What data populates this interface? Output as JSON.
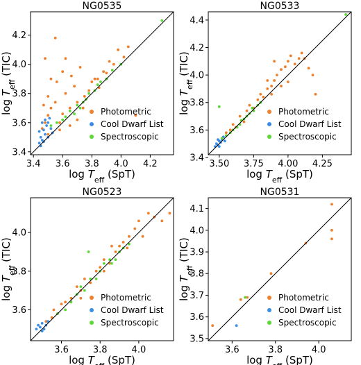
{
  "colors": {
    "photometric": "#f07f2a",
    "cool_dwarf": "#3b8ee6",
    "spectroscopic": "#5ad935",
    "line": "#000000"
  },
  "chart_data": [
    {
      "type": "scatter",
      "title": "NG0535",
      "xlabel": "log T_eff (SpT)",
      "ylabel": "log T_eff (TIC)",
      "xlim": [
        3.38,
        4.36
      ],
      "ylim": [
        3.38,
        4.36
      ],
      "xticks": [
        "3.4",
        "3.6",
        "3.8",
        "4.0",
        "4.2"
      ],
      "yticks": [
        "3.4",
        "3.6",
        "3.8",
        "4.0",
        "4.2"
      ],
      "legend_position": "lower-right",
      "identity_line": true,
      "series": [
        {
          "name": "Photometric",
          "color_key": "photometric",
          "points": [
            [
              3.46,
              3.56
            ],
            [
              3.48,
              3.6
            ],
            [
              3.5,
              3.65
            ],
            [
              3.52,
              3.7
            ],
            [
              3.5,
              3.78
            ],
            [
              3.52,
              3.9
            ],
            [
              3.48,
              4.04
            ],
            [
              3.55,
              3.74
            ],
            [
              3.58,
              3.6
            ],
            [
              3.6,
              3.66
            ],
            [
              3.62,
              3.8
            ],
            [
              3.65,
              3.7
            ],
            [
              3.68,
              3.85
            ],
            [
              3.7,
              3.74
            ],
            [
              3.72,
              3.98
            ],
            [
              3.75,
              3.78
            ],
            [
              3.78,
              3.82
            ],
            [
              3.8,
              3.88
            ],
            [
              3.82,
              3.9
            ],
            [
              3.85,
              3.84
            ],
            [
              3.88,
              3.95
            ],
            [
              3.9,
              3.94
            ],
            [
              3.92,
              4.02
            ],
            [
              3.95,
              4.0
            ],
            [
              3.98,
              4.1
            ],
            [
              4.02,
              4.05
            ],
            [
              4.05,
              4.12
            ],
            [
              4.1,
              3.65
            ],
            [
              3.55,
              4.18
            ],
            [
              3.6,
              3.95
            ],
            [
              3.65,
              3.58
            ],
            [
              3.5,
              3.52
            ],
            [
              3.7,
              3.62
            ],
            [
              3.56,
              3.88
            ],
            [
              3.62,
              4.04
            ],
            [
              3.47,
              3.72
            ],
            [
              3.58,
              3.55
            ],
            [
              3.66,
              3.92
            ],
            [
              3.74,
              3.7
            ],
            [
              3.84,
              3.9
            ]
          ]
        },
        {
          "name": "Cool Dwarf List",
          "color_key": "cool_dwarf",
          "points": [
            [
              3.44,
              3.46
            ],
            [
              3.45,
              3.5
            ],
            [
              3.46,
              3.48
            ],
            [
              3.47,
              3.55
            ],
            [
              3.48,
              3.52
            ],
            [
              3.49,
              3.58
            ],
            [
              3.5,
              3.5
            ],
            [
              3.46,
              3.6
            ],
            [
              3.52,
              3.56
            ],
            [
              3.44,
              3.54
            ],
            [
              3.48,
              3.62
            ],
            [
              3.5,
              3.6
            ],
            [
              3.45,
              3.44
            ],
            [
              3.53,
              3.53
            ],
            [
              3.47,
              3.47
            ],
            [
              3.51,
              3.63
            ]
          ]
        },
        {
          "name": "Spectroscopic",
          "color_key": "spectroscopic",
          "points": [
            [
              3.52,
              3.58
            ],
            [
              3.56,
              3.6
            ],
            [
              3.6,
              3.62
            ],
            [
              3.65,
              3.68
            ],
            [
              3.7,
              3.72
            ],
            [
              3.74,
              3.74
            ],
            [
              3.78,
              3.8
            ],
            [
              3.82,
              3.82
            ],
            [
              3.86,
              3.88
            ],
            [
              3.9,
              3.9
            ],
            [
              3.94,
              3.96
            ],
            [
              4.0,
              4.0
            ],
            [
              4.28,
              4.3
            ],
            [
              3.76,
              3.76
            ],
            [
              3.68,
              3.66
            ],
            [
              3.62,
              3.64
            ],
            [
              3.84,
              3.86
            ],
            [
              3.72,
              3.7
            ]
          ]
        }
      ]
    },
    {
      "type": "scatter",
      "title": "NG0533",
      "xlabel": "log T_eff (SpT)",
      "ylabel": "log T_eff (TIC)",
      "xlim": [
        3.42,
        4.46
      ],
      "ylim": [
        3.42,
        4.46
      ],
      "xticks": [
        "3.50",
        "3.75",
        "4.00",
        "4.25"
      ],
      "yticks": [
        "3.4",
        "3.6",
        "3.8",
        "4.0",
        "4.2",
        "4.4"
      ],
      "legend_position": "lower-right",
      "identity_line": true,
      "series": [
        {
          "name": "Photometric",
          "color_key": "photometric",
          "points": [
            [
              3.55,
              3.58
            ],
            [
              3.58,
              3.6
            ],
            [
              3.6,
              3.64
            ],
            [
              3.62,
              3.62
            ],
            [
              3.65,
              3.7
            ],
            [
              3.68,
              3.66
            ],
            [
              3.7,
              3.74
            ],
            [
              3.72,
              3.78
            ],
            [
              3.75,
              3.76
            ],
            [
              3.78,
              3.82
            ],
            [
              3.8,
              3.86
            ],
            [
              3.82,
              3.84
            ],
            [
              3.85,
              3.9
            ],
            [
              3.88,
              3.92
            ],
            [
              3.9,
              3.96
            ],
            [
              3.92,
              4.0
            ],
            [
              3.95,
              4.04
            ],
            [
              3.98,
              4.06
            ],
            [
              4.0,
              4.1
            ],
            [
              4.02,
              4.14
            ],
            [
              4.05,
              4.08
            ],
            [
              4.08,
              4.12
            ],
            [
              4.1,
              4.16
            ],
            [
              4.15,
              4.05
            ],
            [
              4.2,
              3.86
            ],
            [
              4.18,
              4.0
            ],
            [
              3.9,
              4.1
            ],
            [
              3.85,
              3.96
            ],
            [
              3.95,
              3.92
            ],
            [
              4.12,
              4.12
            ],
            [
              3.88,
              3.86
            ],
            [
              4.0,
              3.95
            ]
          ]
        },
        {
          "name": "Cool Dwarf List",
          "color_key": "cool_dwarf",
          "points": [
            [
              3.47,
              3.48
            ],
            [
              3.48,
              3.5
            ],
            [
              3.49,
              3.49
            ],
            [
              3.5,
              3.52
            ],
            [
              3.51,
              3.51
            ],
            [
              3.52,
              3.53
            ],
            [
              3.5,
              3.48
            ],
            [
              3.53,
              3.55
            ],
            [
              3.49,
              3.53
            ],
            [
              3.54,
              3.52
            ]
          ]
        },
        {
          "name": "Spectroscopic",
          "color_key": "spectroscopic",
          "points": [
            [
              3.52,
              3.54
            ],
            [
              3.55,
              3.56
            ],
            [
              3.58,
              3.58
            ],
            [
              3.6,
              3.6
            ],
            [
              3.63,
              3.62
            ],
            [
              3.65,
              3.64
            ],
            [
              3.68,
              3.68
            ],
            [
              3.7,
              3.7
            ],
            [
              3.72,
              3.72
            ],
            [
              3.75,
              3.74
            ],
            [
              3.78,
              3.78
            ],
            [
              3.8,
              3.8
            ],
            [
              3.5,
              3.77
            ],
            [
              4.42,
              4.44
            ],
            [
              3.66,
              3.67
            ],
            [
              3.74,
              3.76
            ]
          ]
        }
      ]
    },
    {
      "type": "scatter",
      "title": "NG0523",
      "xlabel": "log T_eff (SpT)",
      "ylabel": "log T_eff (TIC)",
      "xlim": [
        3.44,
        4.18
      ],
      "ylim": [
        3.44,
        4.18
      ],
      "xticks": [
        "3.6",
        "3.8",
        "4.0"
      ],
      "yticks": [
        "3.6",
        "3.8",
        "4.0"
      ],
      "legend_position": "lower-right",
      "identity_line": true,
      "series": [
        {
          "name": "Photometric",
          "color_key": "photometric",
          "points": [
            [
              3.52,
              3.54
            ],
            [
              3.55,
              3.56
            ],
            [
              3.56,
              3.6
            ],
            [
              3.58,
              3.58
            ],
            [
              3.6,
              3.63
            ],
            [
              3.62,
              3.64
            ],
            [
              3.65,
              3.66
            ],
            [
              3.68,
              3.72
            ],
            [
              3.7,
              3.7
            ],
            [
              3.72,
              3.76
            ],
            [
              3.75,
              3.74
            ],
            [
              3.78,
              3.8
            ],
            [
              3.8,
              3.82
            ],
            [
              3.82,
              3.86
            ],
            [
              3.85,
              3.84
            ],
            [
              3.88,
              3.9
            ],
            [
              3.9,
              3.93
            ],
            [
              3.92,
              3.95
            ],
            [
              3.95,
              3.98
            ],
            [
              3.98,
              4.02
            ],
            [
              4.0,
              4.06
            ],
            [
              4.02,
              3.98
            ],
            [
              4.05,
              4.1
            ],
            [
              4.08,
              4.08
            ],
            [
              4.12,
              4.06
            ],
            [
              4.16,
              4.1
            ],
            [
              3.86,
              3.93
            ],
            [
              3.94,
              3.92
            ],
            [
              3.7,
              3.66
            ],
            [
              3.82,
              3.8
            ]
          ]
        },
        {
          "name": "Cool Dwarf List",
          "color_key": "cool_dwarf",
          "points": [
            [
              3.47,
              3.5
            ],
            [
              3.48,
              3.52
            ],
            [
              3.49,
              3.51
            ],
            [
              3.5,
              3.53
            ],
            [
              3.51,
              3.5
            ],
            [
              3.52,
              3.52
            ],
            [
              3.53,
              3.54
            ],
            [
              3.5,
              3.49
            ]
          ]
        },
        {
          "name": "Spectroscopic",
          "color_key": "spectroscopic",
          "points": [
            [
              3.58,
              3.58
            ],
            [
              3.62,
              3.6
            ],
            [
              3.65,
              3.64
            ],
            [
              3.68,
              3.68
            ],
            [
              3.7,
              3.72
            ],
            [
              3.72,
              3.7
            ],
            [
              3.75,
              3.76
            ],
            [
              3.78,
              3.76
            ],
            [
              3.8,
              3.8
            ],
            [
              3.82,
              3.84
            ],
            [
              3.85,
              3.86
            ],
            [
              3.88,
              3.86
            ],
            [
              3.9,
              3.9
            ],
            [
              3.92,
              3.92
            ],
            [
              3.95,
              3.94
            ],
            [
              3.74,
              3.9
            ],
            [
              3.86,
              3.84
            ]
          ]
        }
      ]
    },
    {
      "type": "scatter",
      "title": "NG0531",
      "xlabel": "log T_eff (SpT)",
      "ylabel": "log T_eff (TIC)",
      "xlim": [
        3.49,
        4.15
      ],
      "ylim": [
        3.49,
        4.15
      ],
      "xticks": [
        "3.6",
        "3.8",
        "4.0"
      ],
      "yticks": [
        "3.5",
        "3.6",
        "3.7",
        "3.8",
        "3.9",
        "4.0",
        "4.1"
      ],
      "legend_position": "lower-right",
      "identity_line": true,
      "series": [
        {
          "name": "Photometric",
          "color_key": "photometric",
          "points": [
            [
              3.51,
              3.56
            ],
            [
              3.64,
              3.68
            ],
            [
              3.67,
              3.69
            ],
            [
              3.78,
              3.8
            ],
            [
              3.94,
              3.94
            ],
            [
              4.06,
              4.12
            ],
            [
              4.06,
              4.0
            ],
            [
              4.06,
              3.96
            ]
          ]
        },
        {
          "name": "Cool Dwarf List",
          "color_key": "cool_dwarf",
          "points": [
            [
              3.62,
              3.56
            ]
          ]
        },
        {
          "name": "Spectroscopic",
          "color_key": "spectroscopic",
          "points": [
            [
              3.66,
              3.69
            ]
          ]
        }
      ]
    }
  ]
}
